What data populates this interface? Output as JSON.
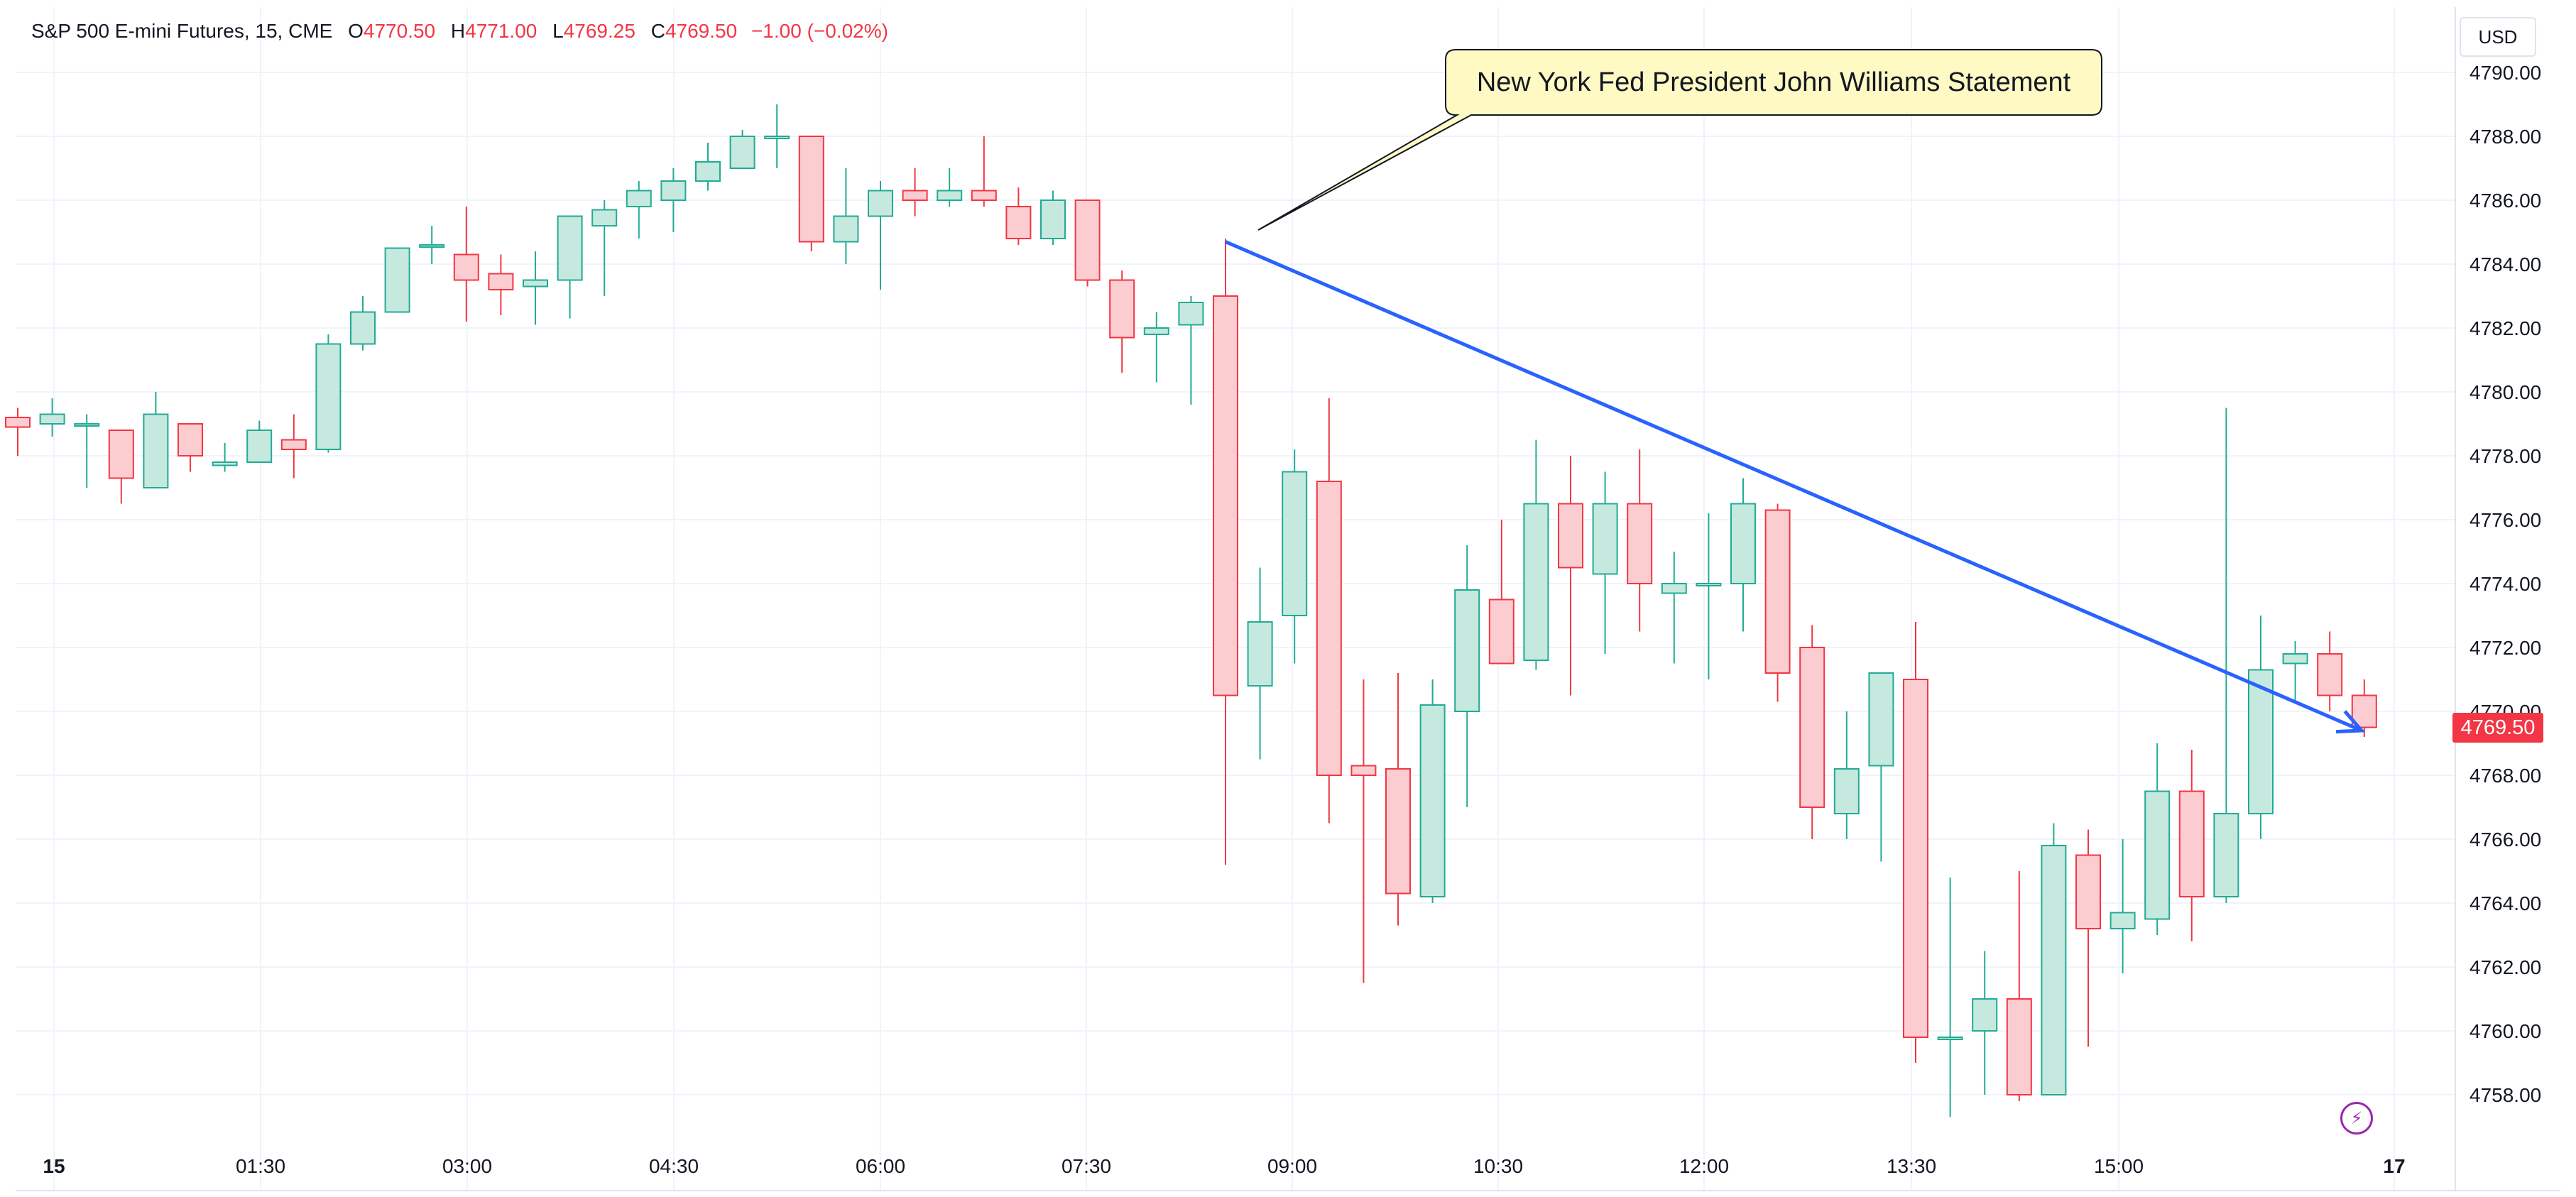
{
  "header": {
    "symbol": "S&P 500 E-mini Futures, 15, CME",
    "open_label": "O",
    "open": "4770.50",
    "high_label": "H",
    "high": "4771.00",
    "low_label": "L",
    "low": "4769.25",
    "close_label": "C",
    "close": "4769.50",
    "change": "−1.00 (−0.02%)"
  },
  "currency_button": "USD",
  "annotation": "New York Fed President John Williams Statement",
  "last_price": "4769.50",
  "colors": {
    "up_body": "#c5e8df",
    "up_border": "#22ab94",
    "down_body": "#fccdd0",
    "down_border": "#f23645",
    "trend_line": "#2962ff",
    "grid": "#f0f3fa",
    "callout_fill": "#fff9c4",
    "icon_accent": "#9c27b0"
  },
  "icons": [
    "lightning-icon"
  ],
  "chart_data": {
    "type": "candlestick",
    "title": "S&P 500 E-mini Futures, 15, CME",
    "ylim": [
      4757,
      4791
    ],
    "y_ticks": [
      "4790.00",
      "4788.00",
      "4786.00",
      "4784.00",
      "4782.00",
      "4780.00",
      "4778.00",
      "4776.00",
      "4774.00",
      "4772.00",
      "4770.00",
      "4768.00",
      "4766.00",
      "4764.00",
      "4762.00",
      "4760.00",
      "4758.00"
    ],
    "x_ticks": [
      "15",
      "01:30",
      "03:00",
      "04:30",
      "06:00",
      "07:30",
      "09:00",
      "10:30",
      "12:00",
      "13:30",
      "15:00",
      "17"
    ],
    "grid": true,
    "candles": [
      {
        "o": 4779.2,
        "h": 4779.5,
        "l": 4778.0,
        "c": 4778.9
      },
      {
        "o": 4779.0,
        "h": 4779.8,
        "l": 4778.6,
        "c": 4779.3
      },
      {
        "o": 4779.0,
        "h": 4779.3,
        "l": 4777.0,
        "c": 4779.0
      },
      {
        "o": 4778.8,
        "h": 4778.8,
        "l": 4776.5,
        "c": 4777.3
      },
      {
        "o": 4777.0,
        "h": 4780.0,
        "l": 4777.0,
        "c": 4779.3
      },
      {
        "o": 4779.0,
        "h": 4779.0,
        "l": 4777.5,
        "c": 4778.0
      },
      {
        "o": 4777.7,
        "h": 4778.4,
        "l": 4777.5,
        "c": 4777.8
      },
      {
        "o": 4777.8,
        "h": 4779.1,
        "l": 4777.8,
        "c": 4778.8
      },
      {
        "o": 4778.5,
        "h": 4779.3,
        "l": 4777.3,
        "c": 4778.2
      },
      {
        "o": 4778.2,
        "h": 4781.8,
        "l": 4778.1,
        "c": 4781.5
      },
      {
        "o": 4781.5,
        "h": 4783.0,
        "l": 4781.3,
        "c": 4782.5
      },
      {
        "o": 4782.5,
        "h": 4784.5,
        "l": 4782.5,
        "c": 4784.5
      },
      {
        "o": 4784.6,
        "h": 4785.2,
        "l": 4784.0,
        "c": 4784.6
      },
      {
        "o": 4784.3,
        "h": 4785.8,
        "l": 4782.2,
        "c": 4783.5
      },
      {
        "o": 4783.7,
        "h": 4784.3,
        "l": 4782.4,
        "c": 4783.2
      },
      {
        "o": 4783.3,
        "h": 4784.4,
        "l": 4782.1,
        "c": 4783.5
      },
      {
        "o": 4783.5,
        "h": 4785.5,
        "l": 4782.3,
        "c": 4785.5
      },
      {
        "o": 4785.2,
        "h": 4786.0,
        "l": 4783.0,
        "c": 4785.7
      },
      {
        "o": 4785.8,
        "h": 4786.6,
        "l": 4784.8,
        "c": 4786.3
      },
      {
        "o": 4786.0,
        "h": 4787.0,
        "l": 4785.0,
        "c": 4786.6
      },
      {
        "o": 4786.6,
        "h": 4787.8,
        "l": 4786.3,
        "c": 4787.2
      },
      {
        "o": 4787.0,
        "h": 4788.2,
        "l": 4787.0,
        "c": 4788.0
      },
      {
        "o": 4788.0,
        "h": 4789.0,
        "l": 4787.0,
        "c": 4788.0
      },
      {
        "o": 4788.0,
        "h": 4788.0,
        "l": 4784.4,
        "c": 4784.7
      },
      {
        "o": 4784.7,
        "h": 4787.0,
        "l": 4784.0,
        "c": 4785.5
      },
      {
        "o": 4785.5,
        "h": 4786.6,
        "l": 4783.2,
        "c": 4786.3
      },
      {
        "o": 4786.3,
        "h": 4787.0,
        "l": 4785.5,
        "c": 4786.0
      },
      {
        "o": 4786.0,
        "h": 4787.0,
        "l": 4785.8,
        "c": 4786.3
      },
      {
        "o": 4786.3,
        "h": 4788.0,
        "l": 4785.8,
        "c": 4786.0
      },
      {
        "o": 4785.8,
        "h": 4786.4,
        "l": 4784.6,
        "c": 4784.8
      },
      {
        "o": 4784.8,
        "h": 4786.3,
        "l": 4784.6,
        "c": 4786.0
      },
      {
        "o": 4786.0,
        "h": 4786.0,
        "l": 4783.3,
        "c": 4783.5
      },
      {
        "o": 4783.5,
        "h": 4783.8,
        "l": 4780.6,
        "c": 4781.7
      },
      {
        "o": 4781.8,
        "h": 4782.5,
        "l": 4780.3,
        "c": 4782.0
      },
      {
        "o": 4782.1,
        "h": 4783.0,
        "l": 4779.6,
        "c": 4782.8
      },
      {
        "o": 4783.0,
        "h": 4784.8,
        "l": 4765.2,
        "c": 4770.5
      },
      {
        "o": 4770.8,
        "h": 4774.5,
        "l": 4768.5,
        "c": 4772.8
      },
      {
        "o": 4773.0,
        "h": 4778.2,
        "l": 4771.5,
        "c": 4777.5
      },
      {
        "o": 4777.2,
        "h": 4779.8,
        "l": 4766.5,
        "c": 4768.0
      },
      {
        "o": 4768.3,
        "h": 4771.0,
        "l": 4761.5,
        "c": 4768.0
      },
      {
        "o": 4768.2,
        "h": 4771.2,
        "l": 4763.3,
        "c": 4764.3
      },
      {
        "o": 4764.2,
        "h": 4771.0,
        "l": 4764.0,
        "c": 4770.2
      },
      {
        "o": 4770.0,
        "h": 4775.2,
        "l": 4767.0,
        "c": 4773.8
      },
      {
        "o": 4773.5,
        "h": 4776.0,
        "l": 4771.5,
        "c": 4771.5
      },
      {
        "o": 4771.6,
        "h": 4778.5,
        "l": 4771.3,
        "c": 4776.5
      },
      {
        "o": 4776.5,
        "h": 4778.0,
        "l": 4770.5,
        "c": 4774.5
      },
      {
        "o": 4774.3,
        "h": 4777.5,
        "l": 4771.8,
        "c": 4776.5
      },
      {
        "o": 4776.5,
        "h": 4778.2,
        "l": 4772.5,
        "c": 4774.0
      },
      {
        "o": 4773.7,
        "h": 4775.0,
        "l": 4771.5,
        "c": 4774.0
      },
      {
        "o": 4774.0,
        "h": 4776.2,
        "l": 4771.0,
        "c": 4774.0
      },
      {
        "o": 4774.0,
        "h": 4777.3,
        "l": 4772.5,
        "c": 4776.5
      },
      {
        "o": 4776.3,
        "h": 4776.5,
        "l": 4770.3,
        "c": 4771.2
      },
      {
        "o": 4772.0,
        "h": 4772.7,
        "l": 4766.0,
        "c": 4767.0
      },
      {
        "o": 4766.8,
        "h": 4770.0,
        "l": 4766.0,
        "c": 4768.2
      },
      {
        "o": 4768.3,
        "h": 4771.2,
        "l": 4765.3,
        "c": 4771.2
      },
      {
        "o": 4771.0,
        "h": 4772.8,
        "l": 4759.0,
        "c": 4759.8
      },
      {
        "o": 4759.8,
        "h": 4764.8,
        "l": 4757.3,
        "c": 4759.8
      },
      {
        "o": 4760.0,
        "h": 4762.5,
        "l": 4758.0,
        "c": 4761.0
      },
      {
        "o": 4761.0,
        "h": 4765.0,
        "l": 4757.8,
        "c": 4758.0
      },
      {
        "o": 4758.0,
        "h": 4766.5,
        "l": 4758.0,
        "c": 4765.8
      },
      {
        "o": 4765.5,
        "h": 4766.3,
        "l": 4759.5,
        "c": 4763.2
      },
      {
        "o": 4763.2,
        "h": 4766.0,
        "l": 4761.8,
        "c": 4763.7
      },
      {
        "o": 4763.5,
        "h": 4769.0,
        "l": 4763.0,
        "c": 4767.5
      },
      {
        "o": 4767.5,
        "h": 4768.8,
        "l": 4762.8,
        "c": 4764.2
      },
      {
        "o": 4764.2,
        "h": 4779.5,
        "l": 4764.0,
        "c": 4766.8
      },
      {
        "o": 4766.8,
        "h": 4773.0,
        "l": 4766.0,
        "c": 4771.3
      },
      {
        "o": 4771.5,
        "h": 4772.2,
        "l": 4770.3,
        "c": 4771.8
      },
      {
        "o": 4771.8,
        "h": 4772.5,
        "l": 4770.0,
        "c": 4770.5
      },
      {
        "o": 4770.5,
        "h": 4771.0,
        "l": 4769.2,
        "c": 4769.5
      }
    ]
  }
}
